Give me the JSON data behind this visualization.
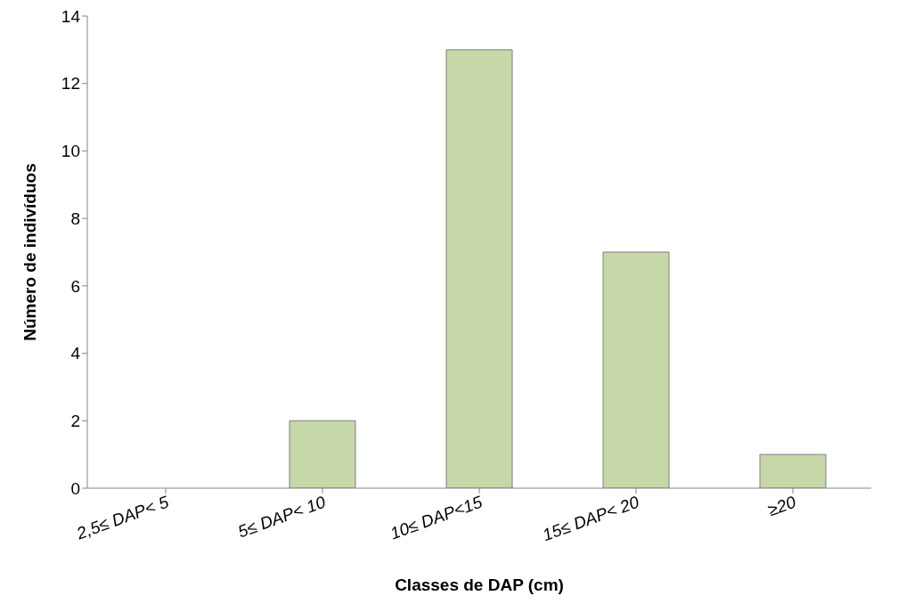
{
  "chart_data": {
    "type": "bar",
    "xlabel": "Classes de DAP (cm)",
    "ylabel": "Número de indivíduos",
    "categories": [
      "2,5≤ DAP< 5",
      "5≤ DAP< 10",
      "10≤ DAP<15",
      "15≤ DAP< 20",
      "≥20"
    ],
    "values": [
      0,
      2,
      13,
      7,
      1
    ],
    "color": "#c6d7a8",
    "ylim": [
      0,
      14
    ],
    "yticks": [
      0,
      2,
      4,
      6,
      8,
      10,
      12,
      14
    ],
    "grid": false,
    "legend": false
  }
}
